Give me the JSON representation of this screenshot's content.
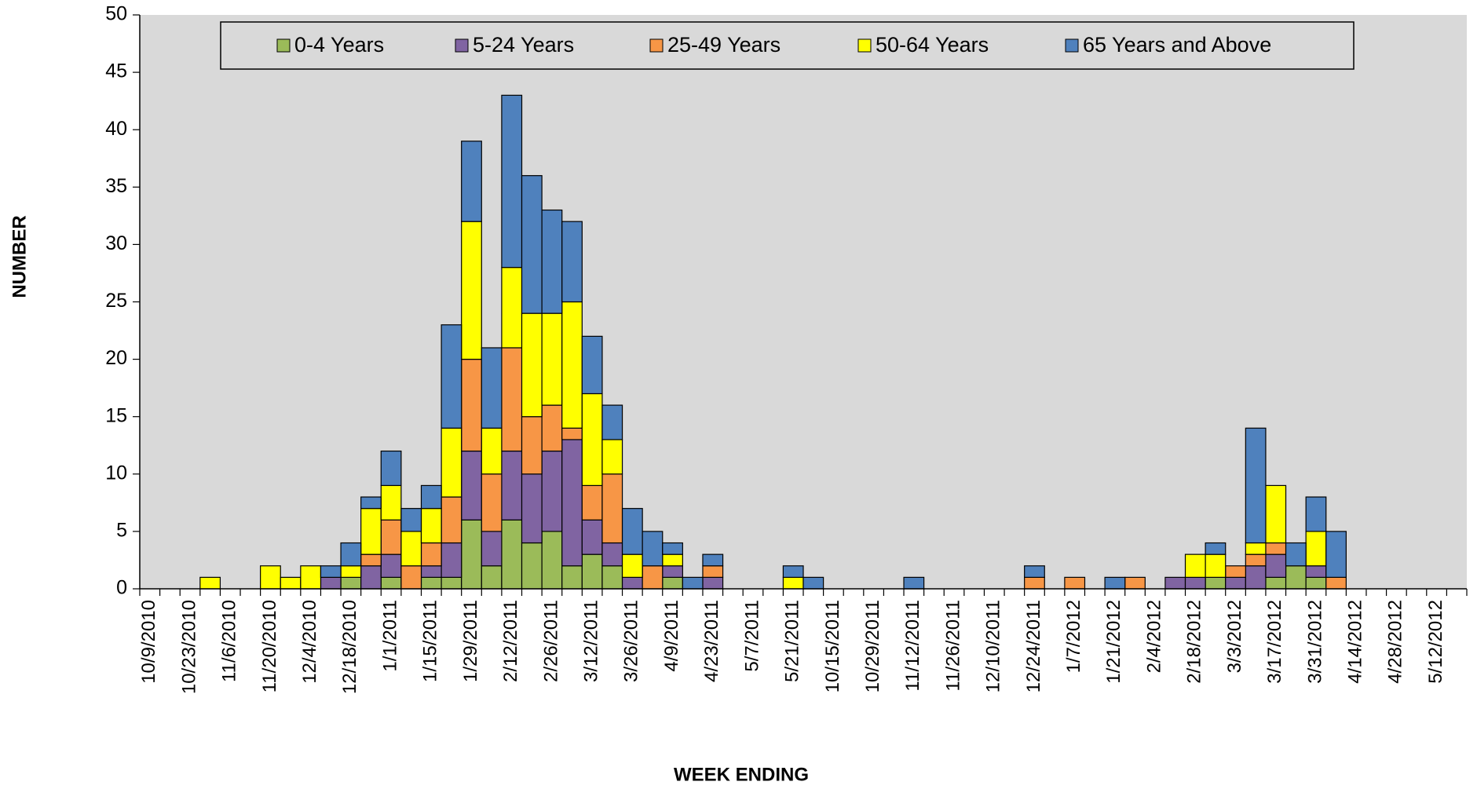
{
  "chart_data": {
    "type": "stacked-bar",
    "x_label": "WEEK ENDING",
    "y_label": "NUMBER",
    "categories": [
      "10/9/2010",
      null,
      "10/23/2010",
      null,
      "11/6/2010",
      null,
      "11/20/2010",
      null,
      "12/4/2010",
      null,
      "12/18/2010",
      null,
      "1/1/2011",
      null,
      "1/15/2011",
      null,
      "1/29/2011",
      null,
      "2/12/2011",
      null,
      "2/26/2011",
      null,
      "3/12/2011",
      null,
      "3/26/2011",
      null,
      "4/9/2011",
      null,
      "4/23/2011",
      null,
      "5/7/2011",
      null,
      "5/21/2011",
      null,
      "10/15/2011",
      null,
      "10/29/2011",
      null,
      "11/12/2011",
      null,
      "11/26/2011",
      null,
      "12/10/2011",
      null,
      "12/24/2011",
      null,
      "1/7/2012",
      null,
      "1/21/2012",
      null,
      "2/4/2012",
      null,
      "2/18/2012",
      null,
      "3/3/2012",
      null,
      "3/17/2012",
      null,
      "3/31/2012",
      null,
      "4/14/2012",
      null,
      "4/28/2012",
      null,
      "5/12/2012",
      null
    ],
    "series": [
      {
        "name": "0-4 Years",
        "color": "#9bbb59",
        "values": [
          0,
          0,
          0,
          0,
          0,
          0,
          0,
          0,
          0,
          0,
          1,
          0,
          1,
          0,
          1,
          1,
          6,
          2,
          6,
          4,
          5,
          2,
          3,
          2,
          0,
          0,
          1,
          0,
          0,
          0,
          0,
          0,
          0,
          0,
          0,
          0,
          0,
          0,
          0,
          0,
          0,
          0,
          0,
          0,
          0,
          0,
          0,
          0,
          0,
          0,
          0,
          0,
          0,
          1,
          0,
          0,
          1,
          2,
          1,
          0,
          0,
          0,
          0,
          0,
          0,
          0
        ]
      },
      {
        "name": "5-24 Years",
        "color": "#8064a2",
        "values": [
          0,
          0,
          0,
          0,
          0,
          0,
          0,
          0,
          0,
          1,
          0,
          2,
          2,
          0,
          1,
          3,
          6,
          3,
          6,
          6,
          7,
          11,
          3,
          2,
          1,
          0,
          1,
          0,
          1,
          0,
          0,
          0,
          0,
          0,
          0,
          0,
          0,
          0,
          0,
          0,
          0,
          0,
          0,
          0,
          0,
          0,
          0,
          0,
          0,
          0,
          0,
          1,
          1,
          0,
          1,
          2,
          2,
          0,
          1,
          0,
          0,
          0,
          0,
          0,
          0,
          0
        ]
      },
      {
        "name": "25-49 Years",
        "color": "#f79646",
        "values": [
          0,
          0,
          0,
          0,
          0,
          0,
          0,
          0,
          0,
          0,
          0,
          1,
          3,
          2,
          2,
          4,
          8,
          5,
          9,
          5,
          4,
          1,
          3,
          6,
          0,
          2,
          0,
          0,
          1,
          0,
          0,
          0,
          0,
          0,
          0,
          0,
          0,
          0,
          0,
          0,
          0,
          0,
          0,
          0,
          1,
          0,
          1,
          0,
          0,
          1,
          0,
          0,
          0,
          0,
          1,
          1,
          1,
          0,
          0,
          1,
          0,
          0,
          0,
          0,
          0,
          0
        ]
      },
      {
        "name": "50-64 Years",
        "color": "#ffff00",
        "values": [
          0,
          0,
          0,
          1,
          0,
          0,
          2,
          1,
          2,
          0,
          1,
          4,
          3,
          3,
          3,
          6,
          12,
          4,
          7,
          9,
          8,
          11,
          8,
          3,
          2,
          0,
          1,
          0,
          0,
          0,
          0,
          0,
          1,
          0,
          0,
          0,
          0,
          0,
          0,
          0,
          0,
          0,
          0,
          0,
          0,
          0,
          0,
          0,
          0,
          0,
          0,
          0,
          2,
          2,
          0,
          1,
          5,
          0,
          3,
          0,
          0,
          0,
          0,
          0,
          0,
          0
        ]
      },
      {
        "name": "65 Years and Above",
        "color": "#4f81bd",
        "values": [
          0,
          0,
          0,
          0,
          0,
          0,
          0,
          0,
          0,
          1,
          2,
          1,
          3,
          2,
          2,
          9,
          7,
          7,
          15,
          12,
          9,
          7,
          5,
          3,
          4,
          3,
          1,
          1,
          1,
          0,
          0,
          0,
          1,
          1,
          0,
          0,
          0,
          0,
          1,
          0,
          0,
          0,
          0,
          0,
          1,
          0,
          0,
          0,
          1,
          0,
          0,
          0,
          0,
          1,
          0,
          10,
          0,
          2,
          3,
          4,
          0,
          0,
          0,
          0,
          0,
          0
        ]
      }
    ],
    "ylim": [
      0,
      50
    ],
    "yticks": [
      0,
      5,
      10,
      15,
      20,
      25,
      30,
      35,
      40,
      45,
      50
    ],
    "plot_background": "#d9d9d9",
    "legend": "top"
  }
}
